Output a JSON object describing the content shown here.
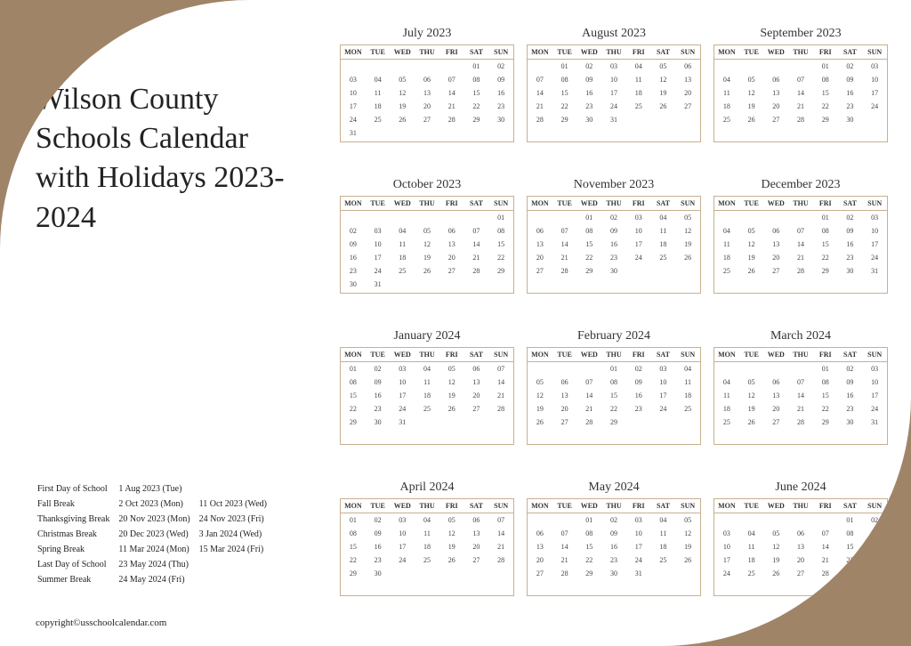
{
  "title": "Wilson County Schools Calendar with Holidays 2023-2024",
  "copyright": "copyright©usschoolcalendar.com",
  "weekdays": [
    "MON",
    "TUE",
    "WED",
    "THU",
    "FRI",
    "SAT",
    "SUN"
  ],
  "colors": {
    "bg": "#a08468",
    "pageBg": "#ffffff",
    "border": "#c8b090",
    "text": "#333333"
  },
  "holidays": [
    {
      "label": "First Day of School",
      "d1": "1 Aug 2023 (Tue)",
      "d2": ""
    },
    {
      "label": "Fall Break",
      "d1": "2 Oct 2023 (Mon)",
      "d2": "11 Oct 2023 (Wed)"
    },
    {
      "label": "Thanksgiving Break",
      "d1": "20 Nov 2023 (Mon)",
      "d2": "24 Nov 2023 (Fri)"
    },
    {
      "label": "Christmas Break",
      "d1": "20 Dec 2023 (Wed)",
      "d2": "3 Jan 2024 (Wed)"
    },
    {
      "label": "Spring Break",
      "d1": "11 Mar 2024 (Mon)",
      "d2": "15 Mar 2024 (Fri)"
    },
    {
      "label": "Last Day of School",
      "d1": "23 May 2024 (Thu)",
      "d2": ""
    },
    {
      "label": "Summer Break",
      "d1": "24 May 2024 (Fri)",
      "d2": ""
    }
  ],
  "months": [
    {
      "name": "July 2023",
      "start": 5,
      "days": 31
    },
    {
      "name": "August 2023",
      "start": 1,
      "days": 31
    },
    {
      "name": "September 2023",
      "start": 4,
      "days": 30
    },
    {
      "name": "October 2023",
      "start": 6,
      "days": 31
    },
    {
      "name": "November 2023",
      "start": 2,
      "days": 30
    },
    {
      "name": "December 2023",
      "start": 4,
      "days": 31
    },
    {
      "name": "January 2024",
      "start": 0,
      "days": 31
    },
    {
      "name": "February 2024",
      "start": 3,
      "days": 29
    },
    {
      "name": "March 2024",
      "start": 4,
      "days": 31
    },
    {
      "name": "April 2024",
      "start": 0,
      "days": 30
    },
    {
      "name": "May 2024",
      "start": 2,
      "days": 31
    },
    {
      "name": "June 2024",
      "start": 5,
      "days": 30
    }
  ]
}
